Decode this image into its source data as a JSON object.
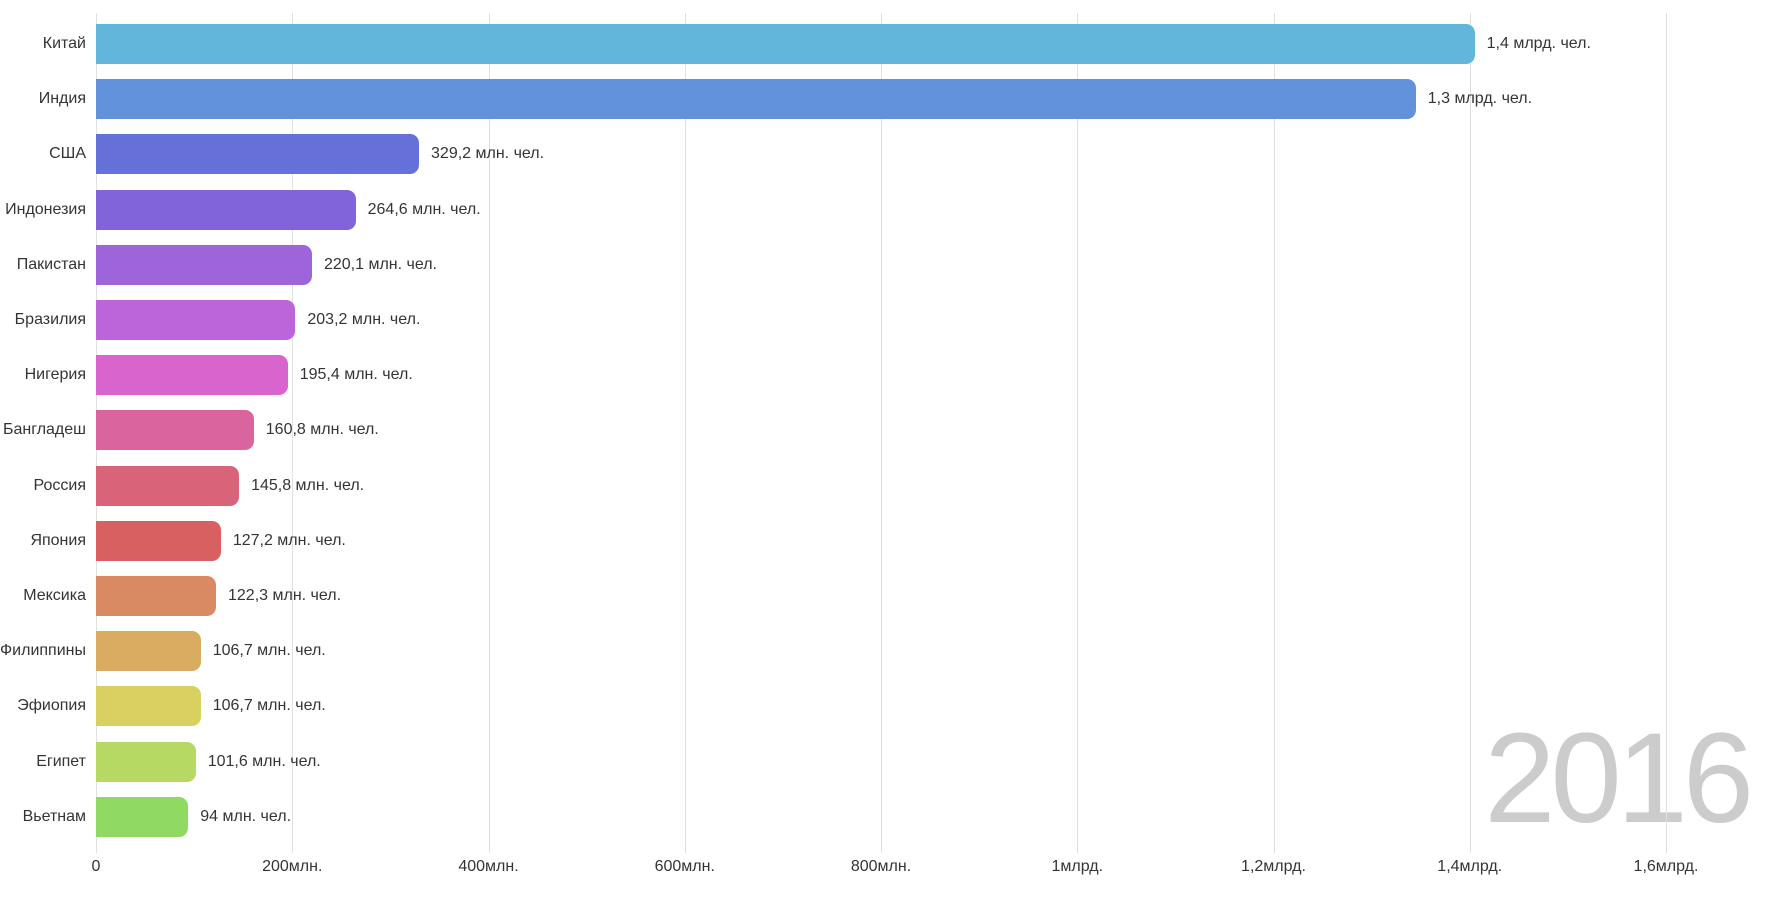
{
  "chart_data": {
    "type": "bar",
    "orientation": "horizontal",
    "title": "",
    "year_label": "2016",
    "unit": "чел.",
    "legend": "none",
    "x_axis": {
      "min_mln": 0,
      "max_mln": 1600,
      "grid": true,
      "ticks": [
        {
          "label": "0",
          "mln": 0
        },
        {
          "label": "200млн.",
          "mln": 200
        },
        {
          "label": "400млн.",
          "mln": 400
        },
        {
          "label": "600млн.",
          "mln": 600
        },
        {
          "label": "800млн.",
          "mln": 800
        },
        {
          "label": "1млрд.",
          "mln": 1000
        },
        {
          "label": "1,2млрд.",
          "mln": 1200
        },
        {
          "label": "1,4млрд.",
          "mln": 1400
        },
        {
          "label": "1,6млрд.",
          "mln": 1600
        }
      ]
    },
    "bars": [
      {
        "label": "Китай",
        "value_mln": 1405,
        "value_label": "1,4 млрд. чел.",
        "color": "#62b6dc"
      },
      {
        "label": "Индия",
        "value_mln": 1345,
        "value_label": "1,3 млрд. чел.",
        "color": "#6292dc"
      },
      {
        "label": "США",
        "value_mln": 329.2,
        "value_label": "329,2 млн. чел.",
        "color": "#6670d9"
      },
      {
        "label": "Индонезия",
        "value_mln": 264.6,
        "value_label": "264,6 млн. чел.",
        "color": "#8164d9"
      },
      {
        "label": "Пакистан",
        "value_mln": 220.1,
        "value_label": "220,1 млн. чел.",
        "color": "#9e64d9"
      },
      {
        "label": "Бразилия",
        "value_mln": 203.2,
        "value_label": "203,2 млн. чел.",
        "color": "#bc64d9"
      },
      {
        "label": "Нигерия",
        "value_mln": 195.4,
        "value_label": "195,4 млн. чел.",
        "color": "#d964cd"
      },
      {
        "label": "Бангладеш",
        "value_mln": 160.8,
        "value_label": "160,8 млн. чел.",
        "color": "#d9649e"
      },
      {
        "label": "Россия",
        "value_mln": 145.8,
        "value_label": "145,8 млн. чел.",
        "color": "#d9647a"
      },
      {
        "label": "Япония",
        "value_mln": 127.2,
        "value_label": "127,2 млн. чел.",
        "color": "#d96060"
      },
      {
        "label": "Мексика",
        "value_mln": 122.3,
        "value_label": "122,3 млн. чел.",
        "color": "#d98a62"
      },
      {
        "label": "Филиппины",
        "value_mln": 106.7,
        "value_label": "106,7 млн. чел.",
        "color": "#d9ac62"
      },
      {
        "label": "Эфиопия",
        "value_mln": 106.7,
        "value_label": "106,7 млн. чел.",
        "color": "#d9d062"
      },
      {
        "label": "Египет",
        "value_mln": 101.6,
        "value_label": "101,6 млн. чел.",
        "color": "#b5d962"
      },
      {
        "label": "Вьетнам",
        "value_mln": 94,
        "value_label": "94 млн. чел.",
        "color": "#90d962"
      }
    ],
    "colors": {
      "background": "#ffffff",
      "grid": "#e0e0e0",
      "text": "#343434",
      "watermark": "#cccccc"
    }
  }
}
